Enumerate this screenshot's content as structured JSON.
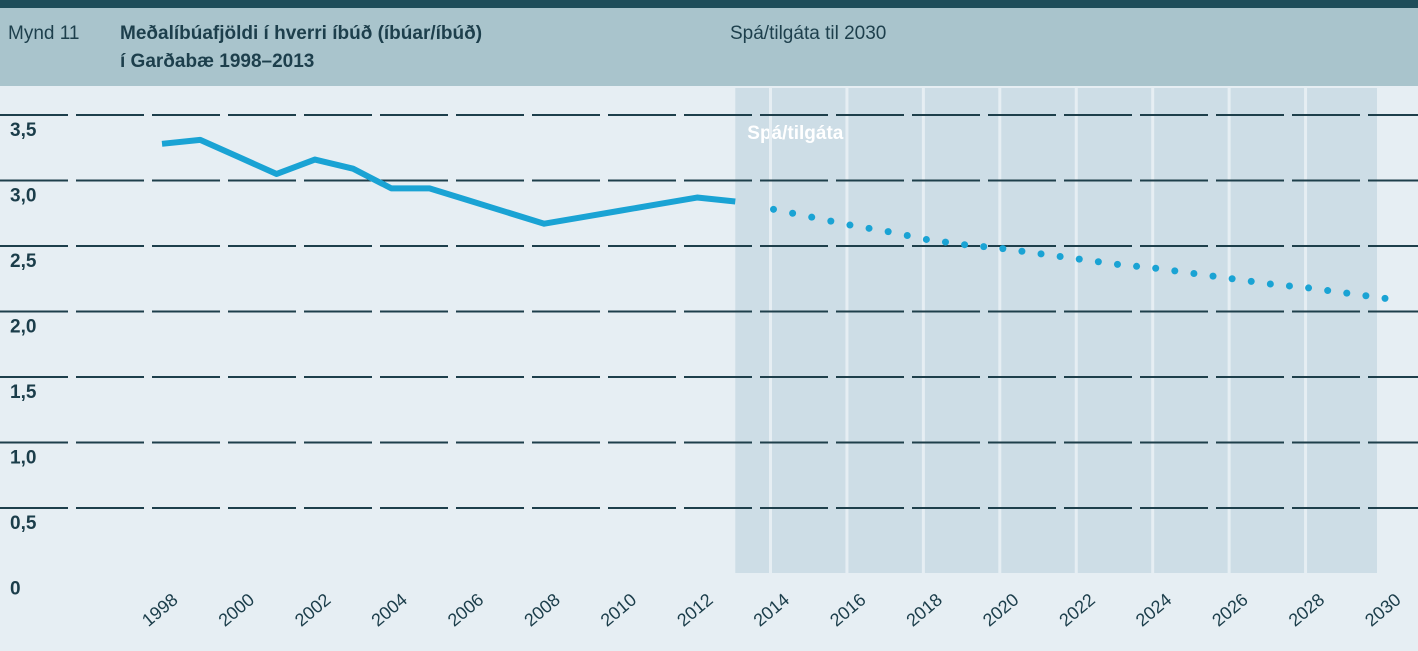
{
  "chart_data": {
    "type": "line",
    "figure_label": "Mynd 11",
    "title": [
      "Meðalíbúafjöldi í hverri íbúð (íbúar/íbúð)",
      "í Garðabæ 1998–2013"
    ],
    "subtitle": "Spá/tilgáta til 2030",
    "annotation": "Spá/tilgáta",
    "x": [
      1998,
      1999,
      2000,
      2001,
      2002,
      2003,
      2004,
      2005,
      2006,
      2007,
      2008,
      2009,
      2010,
      2011,
      2012,
      2013,
      2014,
      2015,
      2016,
      2017,
      2018,
      2019,
      2020,
      2021,
      2022,
      2023,
      2024,
      2025,
      2026,
      2027,
      2028,
      2029,
      2030
    ],
    "series": [
      {
        "name": null,
        "color": "#1aa3d4",
        "style": "solid",
        "values": [
          3.28,
          3.31,
          3.18,
          3.05,
          3.16,
          3.09,
          2.94,
          2.94,
          2.85,
          2.76,
          2.67,
          2.72,
          2.77,
          2.82,
          2.87,
          2.84,
          null,
          null,
          null,
          null,
          null,
          null,
          null,
          null,
          null,
          null,
          null,
          null,
          null,
          null,
          null,
          null,
          null
        ]
      },
      {
        "name": null,
        "color": "#1aa3d4",
        "style": "dotted",
        "values": [
          null,
          null,
          null,
          null,
          null,
          null,
          null,
          null,
          null,
          null,
          null,
          null,
          null,
          null,
          null,
          2.84,
          2.78,
          2.72,
          2.66,
          2.61,
          2.55,
          2.51,
          2.48,
          2.44,
          2.4,
          2.36,
          2.33,
          2.29,
          2.25,
          2.21,
          2.18,
          2.14,
          2.1
        ]
      }
    ],
    "xlim": [
      1998,
      2030
    ],
    "xticks": [
      1998,
      2000,
      2002,
      2004,
      2006,
      2008,
      2010,
      2012,
      2014,
      2016,
      2018,
      2020,
      2022,
      2024,
      2026,
      2028,
      2030
    ],
    "ylim": [
      0,
      3.5
    ],
    "yticks": [
      0,
      {
        "value": 0.5,
        "label": "0,5"
      },
      {
        "value": 1,
        "label": "1,0"
      },
      {
        "value": 1.5,
        "label": "1,5"
      },
      {
        "value": 2,
        "label": "2,0"
      },
      {
        "value": 2.5,
        "label": "2,5"
      },
      {
        "value": 3,
        "label": "3,0"
      },
      {
        "value": 3.5,
        "label": "3,5"
      }
    ],
    "grid": true
  }
}
